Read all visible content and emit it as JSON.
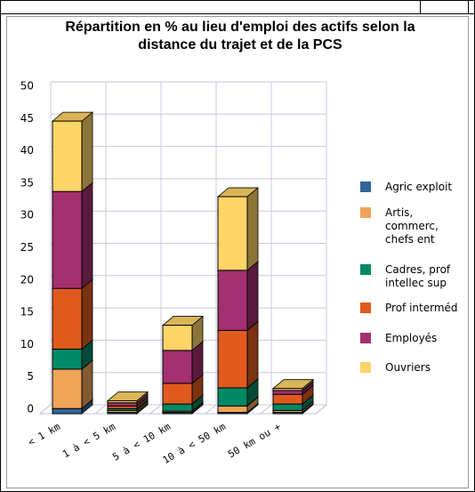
{
  "chart_data": {
    "type": "bar",
    "stacked": true,
    "title": "Répartition en % au lieu d'emploi des actifs selon la distance du trajet et de la PCS",
    "categories": [
      "< 1 km",
      "1 à < 5 km",
      "5 à < 10 km",
      "10 à < 50 km",
      "50 km ou +"
    ],
    "series": [
      {
        "name": "Agric exploit",
        "color": "#336699",
        "values": [
          0.8,
          0.2,
          0.2,
          0.2,
          0.2
        ]
      },
      {
        "name": "Artis, commerc, chefs ent",
        "color": "#f0a458",
        "values": [
          6.1,
          0.3,
          0.2,
          1.0,
          0.3
        ]
      },
      {
        "name": "Cadres, prof intellec sup",
        "color": "#008a66",
        "values": [
          3.1,
          0.3,
          1.1,
          2.8,
          1.0
        ]
      },
      {
        "name": "Prof interméd",
        "color": "#e05a1e",
        "values": [
          9.4,
          0.4,
          3.2,
          8.9,
          1.5
        ]
      },
      {
        "name": "Employés",
        "color": "#a33070",
        "values": [
          15.0,
          0.5,
          5.1,
          9.3,
          0.6
        ]
      },
      {
        "name": "Ouvriers",
        "color": "#ffd468",
        "values": [
          10.9,
          0.3,
          3.9,
          11.4,
          0.3
        ]
      }
    ],
    "ylim": [
      0,
      50
    ],
    "yticks": [
      0,
      5,
      10,
      15,
      20,
      25,
      30,
      35,
      40,
      45,
      50
    ],
    "grid": true,
    "legend": "right"
  }
}
